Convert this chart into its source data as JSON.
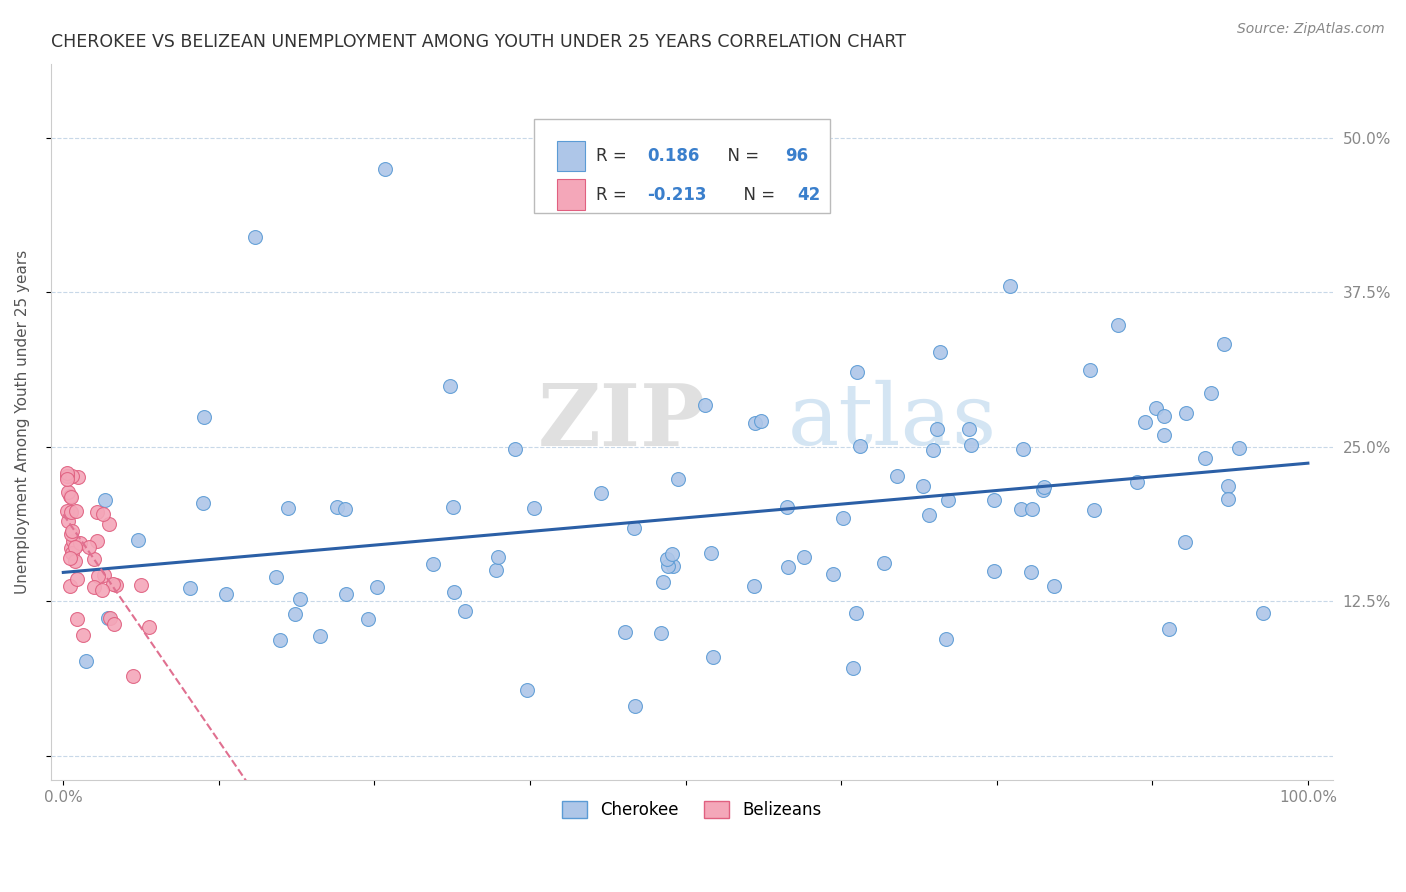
{
  "title": "CHEROKEE VS BELIZEAN UNEMPLOYMENT AMONG YOUTH UNDER 25 YEARS CORRELATION CHART",
  "source": "Source: ZipAtlas.com",
  "ylabel": "Unemployment Among Youth under 25 years",
  "cherokee_color": "#aec6e8",
  "cherokee_edge": "#5b9bd5",
  "belizean_color": "#f4a7b9",
  "belizean_edge": "#e06080",
  "line_cherokee_color": "#2b5fa6",
  "line_belizean_color": "#e07090",
  "R_cherokee": "0.186",
  "N_cherokee": "96",
  "R_belizean": "-0.213",
  "N_belizean": "42",
  "grid_color": "#c8d8e8",
  "tick_color": "#888888"
}
